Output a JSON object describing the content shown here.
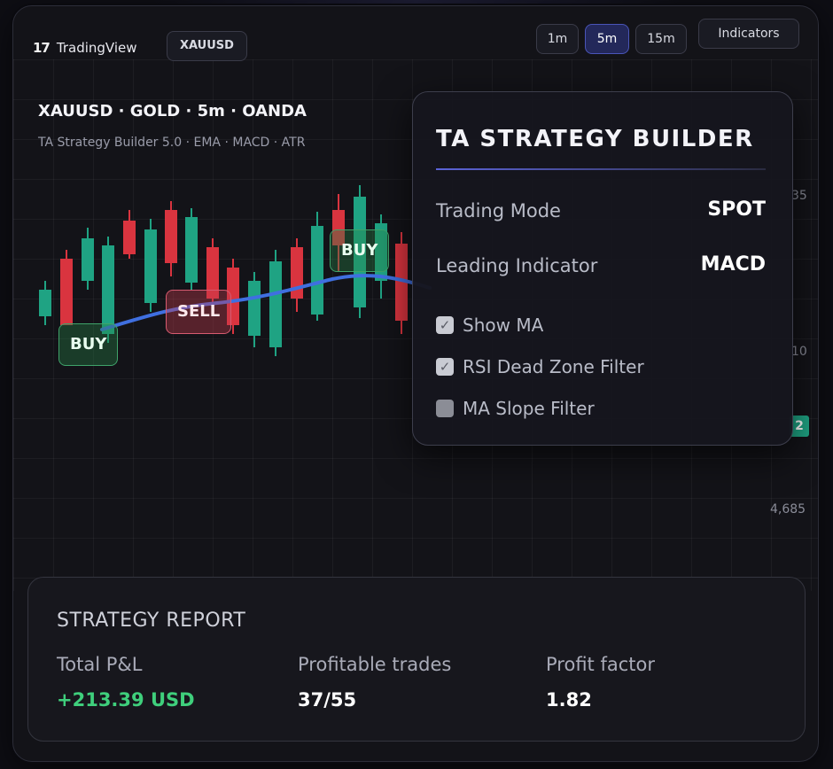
{
  "brand": {
    "name": "TradingView",
    "logo_mark": "17"
  },
  "symbol_chip": "XAUUSD",
  "timeframes": [
    {
      "label": "1m",
      "active": false
    },
    {
      "label": "5m",
      "active": true
    },
    {
      "label": "15m",
      "active": false
    }
  ],
  "indicators_button": "Indicators",
  "chart": {
    "title": "XAUUSD · GOLD · 5m · OANDA",
    "subtitle": "TA Strategy Builder 5.0 · EMA · MACD · ATR",
    "price_labels": [
      "35",
      "10",
      "4,685"
    ],
    "last_price_tag": "2",
    "signals": [
      {
        "label": "BUY",
        "type": "buy"
      },
      {
        "label": "SELL",
        "type": "sell"
      },
      {
        "label": "BUY",
        "type": "buy"
      }
    ]
  },
  "strategy_panel": {
    "title": "TA STRATEGY BUILDER",
    "rows": [
      {
        "label": "Trading Mode",
        "value": "SPOT"
      },
      {
        "label": "Leading Indicator",
        "value": "MACD"
      }
    ],
    "checkboxes": [
      {
        "label": "Show MA",
        "checked": true
      },
      {
        "label": "RSI Dead Zone Filter",
        "checked": true
      },
      {
        "label": "MA Slope Filter",
        "checked": false
      }
    ]
  },
  "report": {
    "title": "STRATEGY REPORT",
    "stats": [
      {
        "label": "Total P&L",
        "value": "+213.39 USD"
      },
      {
        "label": "Profitable trades",
        "value": "37/55"
      },
      {
        "label": "Profit factor",
        "value": "1.82"
      }
    ]
  },
  "colors": {
    "bull": "#1fa383",
    "bear": "#d9343f",
    "ma_line": "#3f6fe0",
    "accent": "#5b63d8",
    "positive": "#3fcf7c"
  }
}
